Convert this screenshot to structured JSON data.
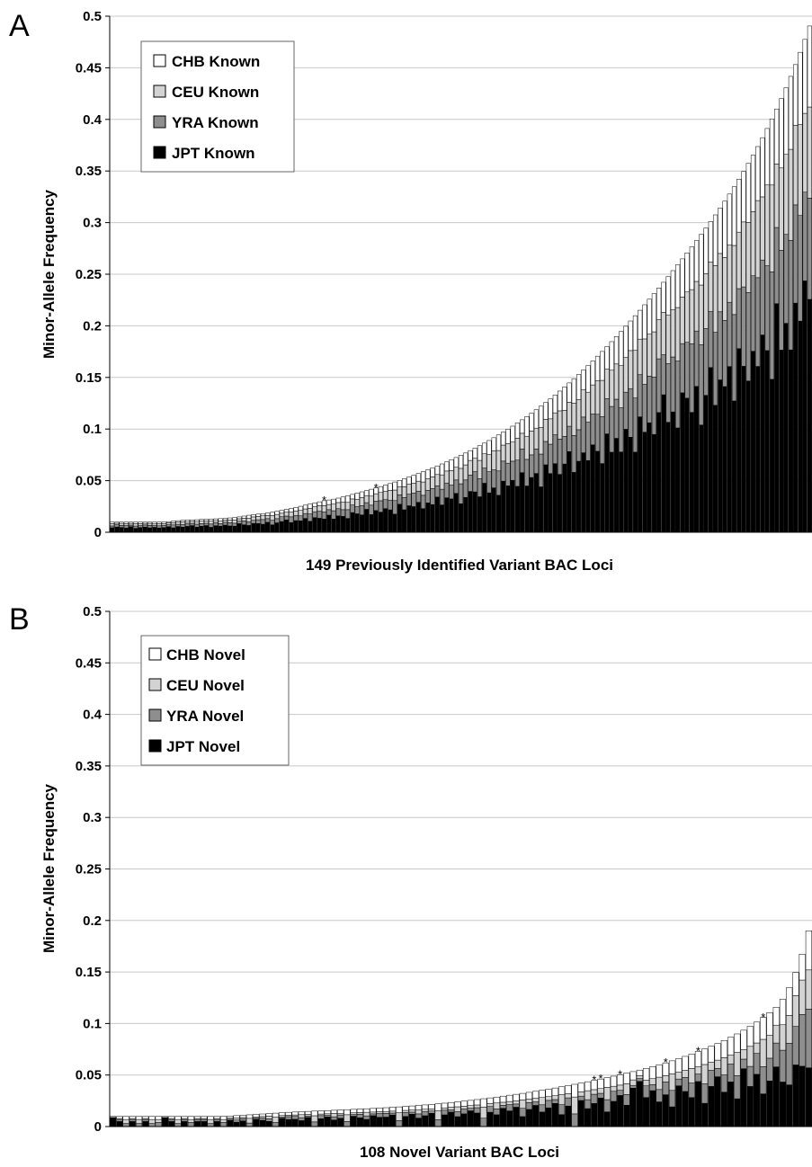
{
  "colors": {
    "CHB": "#ffffff",
    "CEU": "#d3d3d3",
    "YRA": "#8e8e8e",
    "JPT": "#000000",
    "gridline": "#c8c8c8",
    "axis": "#000000"
  },
  "chart_data": [
    {
      "panel": "A",
      "type": "bar",
      "stacked": true,
      "ylabel": "Minor-Allele Frequency",
      "xlabel": "149 Previously Identified Variant BAC Loci",
      "ylim": [
        0,
        0.5
      ],
      "yticks": [
        "0",
        "0.05",
        "0.1",
        "0.15",
        "0.2",
        "0.25",
        "0.3",
        "0.35",
        "0.4",
        "0.45",
        "0.5"
      ],
      "grid": true,
      "legend_position": "top-left",
      "legend": [
        "CHB Known",
        "CEU Known",
        "YRA Known",
        "JPT Known"
      ],
      "n_loci": 149,
      "totals": [
        0.0098,
        0.0098,
        0.0098,
        0.0098,
        0.0098,
        0.0098,
        0.0098,
        0.0098,
        0.0098,
        0.0098,
        0.0098,
        0.0099,
        0.0103,
        0.0108,
        0.0112,
        0.0116,
        0.0119,
        0.012,
        0.0121,
        0.0124,
        0.0125,
        0.0127,
        0.013,
        0.0132,
        0.0135,
        0.0139,
        0.0142,
        0.0149,
        0.0157,
        0.0165,
        0.0171,
        0.0176,
        0.0181,
        0.0186,
        0.0194,
        0.0203,
        0.0212,
        0.0221,
        0.023,
        0.024,
        0.0252,
        0.0263,
        0.0273,
        0.0284,
        0.0295,
        0.0306,
        0.0313,
        0.0321,
        0.0331,
        0.0342,
        0.0353,
        0.0367,
        0.0381,
        0.0392,
        0.0404,
        0.0417,
        0.0429,
        0.0443,
        0.0458,
        0.0472,
        0.0487,
        0.0503,
        0.0519,
        0.0535,
        0.0552,
        0.0569,
        0.0587,
        0.0605,
        0.0624,
        0.0643,
        0.0662,
        0.0682,
        0.0703,
        0.0724,
        0.0746,
        0.0768,
        0.0791,
        0.0815,
        0.0839,
        0.0864,
        0.0889,
        0.0916,
        0.0943,
        0.0971,
        0.0999,
        0.1028,
        0.1059,
        0.109,
        0.1121,
        0.1154,
        0.1187,
        0.1222,
        0.1257,
        0.1293,
        0.133,
        0.1368,
        0.1407,
        0.1447,
        0.1488,
        0.1529,
        0.1572,
        0.1616,
        0.166,
        0.1706,
        0.1752,
        0.1799,
        0.1847,
        0.1896,
        0.1945,
        0.1996,
        0.2047,
        0.2098,
        0.2151,
        0.2204,
        0.2258,
        0.2312,
        0.2367,
        0.2422,
        0.2478,
        0.2535,
        0.2592,
        0.2649,
        0.2707,
        0.2766,
        0.2826,
        0.2886,
        0.2948,
        0.3011,
        0.3075,
        0.3141,
        0.3208,
        0.3277,
        0.3348,
        0.3421,
        0.3496,
        0.3574,
        0.3654,
        0.3737,
        0.3823,
        0.3912,
        0.4005,
        0.4101,
        0.4202,
        0.4307,
        0.4417,
        0.4531,
        0.465,
        0.4775,
        0.4905
      ],
      "layer_fractions": {
        "JPT": [
          0.45,
          0.52,
          0.48,
          0.41,
          0.55,
          0.39,
          0.47,
          0.51,
          0.44,
          0.49,
          0.42,
          0.46,
          0.53,
          0.4,
          0.5,
          0.43,
          0.48,
          0.54,
          0.41,
          0.47,
          0.52,
          0.38,
          0.49,
          0.45,
          0.51,
          0.44,
          0.42,
          0.56,
          0.46,
          0.4,
          0.5,
          0.48,
          0.43,
          0.52,
          0.37,
          0.45,
          0.49,
          0.54,
          0.41,
          0.47,
          0.44,
          0.51,
          0.39,
          0.5,
          0.46,
          0.42,
          0.53,
          0.4,
          0.48,
          0.45,
          0.38,
          0.52,
          0.47,
          0.43,
          0.55,
          0.41,
          0.49,
          0.44,
          0.5,
          0.46,
          0.36,
          0.54,
          0.42,
          0.48,
          0.45,
          0.51,
          0.39,
          0.47,
          0.43,
          0.53,
          0.4,
          0.49,
          0.46,
          0.52,
          0.37,
          0.44,
          0.5,
          0.48,
          0.41,
          0.55,
          0.43,
          0.47,
          0.38,
          0.51,
          0.45,
          0.49,
          0.42,
          0.53,
          0.4,
          0.46,
          0.48,
          0.36,
          0.52,
          0.44,
          0.5,
          0.41,
          0.47,
          0.54,
          0.39,
          0.45,
          0.49,
          0.43,
          0.51,
          0.46,
          0.38,
          0.53,
          0.42,
          0.48,
          0.4,
          0.5,
          0.45,
          0.37,
          0.52,
          0.44,
          0.47,
          0.41,
          0.49,
          0.55,
          0.43,
          0.46,
          0.39,
          0.51,
          0.48,
          0.42,
          0.5,
          0.36,
          0.45,
          0.53,
          0.4,
          0.47,
          0.44,
          0.49,
          0.38,
          0.52,
          0.46,
          0.41,
          0.48,
          0.43,
          0.5,
          0.45,
          0.37,
          0.54,
          0.42,
          0.47,
          0.4,
          0.49,
          0.44,
          0.51,
          0.46
        ],
        "YRA": [
          0.18,
          0.22,
          0.2,
          0.25,
          0.16,
          0.23,
          0.19,
          0.21,
          0.24,
          0.17,
          0.22,
          0.2,
          0.18,
          0.26,
          0.19,
          0.23,
          0.21,
          0.17,
          0.24,
          0.2,
          0.18,
          0.25,
          0.22,
          0.19,
          0.21,
          0.23,
          0.2,
          0.16,
          0.24,
          0.22,
          0.18,
          0.21,
          0.25,
          0.19,
          0.23,
          0.2,
          0.22,
          0.17,
          0.24,
          0.21,
          0.19,
          0.18,
          0.26,
          0.2,
          0.23,
          0.22,
          0.17,
          0.25,
          0.21,
          0.19,
          0.24,
          0.2,
          0.18,
          0.23,
          0.16,
          0.22,
          0.21,
          0.25,
          0.19,
          0.2,
          0.27,
          0.18,
          0.23,
          0.21,
          0.24,
          0.19,
          0.22,
          0.2,
          0.25,
          0.17,
          0.23,
          0.21,
          0.19,
          0.18,
          0.26,
          0.22,
          0.2,
          0.24,
          0.21,
          0.17,
          0.23,
          0.19,
          0.25,
          0.2,
          0.22,
          0.18,
          0.24,
          0.21,
          0.23,
          0.19,
          0.2,
          0.26,
          0.18,
          0.22,
          0.21,
          0.25,
          0.19,
          0.17,
          0.24,
          0.2,
          0.22,
          0.23,
          0.18,
          0.21,
          0.26,
          0.19,
          0.24,
          0.2,
          0.22,
          0.18,
          0.23,
          0.25,
          0.19,
          0.21,
          0.2,
          0.24,
          0.22,
          0.16,
          0.23,
          0.21,
          0.25,
          0.18,
          0.2,
          0.24,
          0.19,
          0.27,
          0.22,
          0.18,
          0.23,
          0.21,
          0.2,
          0.19,
          0.25,
          0.17,
          0.22,
          0.24,
          0.2,
          0.23,
          0.19,
          0.21,
          0.26,
          0.18,
          0.23,
          0.2,
          0.24,
          0.21,
          0.22,
          0.18,
          0.2
        ],
        "CEU": [
          0.22,
          0.15,
          0.2,
          0.2,
          0.17,
          0.23,
          0.19,
          0.16,
          0.2,
          0.21,
          0.22,
          0.19,
          0.17,
          0.2,
          0.18,
          0.21,
          0.17,
          0.16,
          0.21,
          0.2,
          0.17,
          0.22,
          0.16,
          0.2,
          0.15,
          0.19,
          0.22,
          0.16,
          0.17,
          0.21,
          0.19,
          0.18,
          0.2,
          0.16,
          0.23,
          0.2,
          0.16,
          0.17,
          0.2,
          0.18,
          0.21,
          0.17,
          0.2,
          0.17,
          0.18,
          0.2,
          0.16,
          0.2,
          0.18,
          0.21,
          0.2,
          0.16,
          0.19,
          0.2,
          0.17,
          0.21,
          0.17,
          0.18,
          0.18,
          0.2,
          0.21,
          0.16,
          0.2,
          0.18,
          0.17,
          0.17,
          0.22,
          0.19,
          0.18,
          0.17,
          0.21,
          0.17,
          0.2,
          0.17,
          0.2,
          0.19,
          0.18,
          0.16,
          0.21,
          0.16,
          0.19,
          0.2,
          0.21,
          0.16,
          0.19,
          0.18,
          0.2,
          0.14,
          0.2,
          0.2,
          0.17,
          0.21,
          0.17,
          0.19,
          0.16,
          0.2,
          0.18,
          0.16,
          0.21,
          0.19,
          0.17,
          0.18,
          0.17,
          0.19,
          0.2,
          0.16,
          0.19,
          0.18,
          0.21,
          0.17,
          0.18,
          0.22,
          0.16,
          0.2,
          0.18,
          0.19,
          0.16,
          0.17,
          0.19,
          0.18,
          0.2,
          0.17,
          0.18,
          0.19,
          0.17,
          0.2,
          0.18,
          0.16,
          0.21,
          0.18,
          0.19,
          0.17,
          0.2,
          0.16,
          0.18,
          0.19,
          0.17,
          0.2,
          0.16,
          0.2,
          0.21,
          0.15,
          0.19,
          0.18,
          0.2,
          0.17,
          0.19,
          0.16,
          0.18
        ]
      },
      "stars_at": [
        45,
        56
      ],
      "stars": [
        "*",
        "*"
      ]
    },
    {
      "panel": "B",
      "type": "bar",
      "stacked": true,
      "ylabel": "Minor-Allele Frequency",
      "xlabel": "108 Novel Variant BAC Loci",
      "ylim": [
        0,
        0.5
      ],
      "yticks": [
        "0",
        "0.05",
        "0.1",
        "0.15",
        "0.2",
        "0.25",
        "0.3",
        "0.35",
        "0.4",
        "0.45",
        "0.5"
      ],
      "grid": true,
      "legend_position": "top-left",
      "legend": [
        "CHB Novel",
        "CEU Novel",
        "YRA Novel",
        "JPT Novel"
      ],
      "n_loci": 108,
      "totals": [
        0.0098,
        0.0098,
        0.0098,
        0.0098,
        0.0098,
        0.0098,
        0.0098,
        0.0098,
        0.0098,
        0.0098,
        0.0098,
        0.0098,
        0.0098,
        0.0098,
        0.0098,
        0.0098,
        0.0098,
        0.0098,
        0.0102,
        0.0106,
        0.011,
        0.0114,
        0.0118,
        0.0122,
        0.0126,
        0.013,
        0.0134,
        0.0138,
        0.0141,
        0.0144,
        0.0147,
        0.015,
        0.0152,
        0.0155,
        0.0158,
        0.0161,
        0.0164,
        0.0167,
        0.017,
        0.0173,
        0.0176,
        0.018,
        0.0183,
        0.0187,
        0.0191,
        0.0196,
        0.02,
        0.0205,
        0.021,
        0.0215,
        0.0221,
        0.0227,
        0.0234,
        0.024,
        0.0247,
        0.0254,
        0.0262,
        0.027,
        0.0278,
        0.0286,
        0.0295,
        0.0304,
        0.0313,
        0.0322,
        0.0332,
        0.0342,
        0.0352,
        0.0363,
        0.0374,
        0.0386,
        0.0398,
        0.041,
        0.0422,
        0.0435,
        0.0448,
        0.0461,
        0.0475,
        0.0489,
        0.0503,
        0.0518,
        0.0533,
        0.0548,
        0.0564,
        0.0581,
        0.0599,
        0.0618,
        0.0638,
        0.0659,
        0.0681,
        0.0704,
        0.0728,
        0.0753,
        0.0779,
        0.0806,
        0.0835,
        0.0866,
        0.0899,
        0.0935,
        0.0973,
        0.1014,
        0.1058,
        0.1106,
        0.1158,
        0.1235,
        0.1348,
        0.1495,
        0.1673,
        0.19
      ],
      "layer_fractions": {
        "JPT": [
          0.9,
          0.5,
          0.0,
          0.5,
          0.0,
          0.5,
          0.0,
          0.0,
          0.9,
          0.5,
          0.0,
          0.5,
          0.0,
          0.5,
          0.5,
          0.0,
          0.5,
          0.0,
          0.6,
          0.4,
          0.5,
          0.0,
          0.6,
          0.5,
          0.4,
          0.0,
          0.6,
          0.5,
          0.5,
          0.4,
          0.6,
          0.0,
          0.5,
          0.6,
          0.4,
          0.5,
          0.0,
          0.6,
          0.5,
          0.4,
          0.6,
          0.5,
          0.5,
          0.6,
          0.0,
          0.5,
          0.6,
          0.4,
          0.5,
          0.6,
          0.0,
          0.5,
          0.6,
          0.4,
          0.5,
          0.6,
          0.5,
          0.0,
          0.5,
          0.4,
          0.6,
          0.5,
          0.6,
          0.3,
          0.5,
          0.6,
          0.4,
          0.5,
          0.6,
          0.3,
          0.5,
          0.0,
          0.6,
          0.4,
          0.5,
          0.6,
          0.3,
          0.5,
          0.6,
          0.4,
          0.7,
          0.8,
          0.5,
          0.6,
          0.4,
          0.5,
          0.3,
          0.6,
          0.5,
          0.4,
          0.6,
          0.3,
          0.5,
          0.6,
          0.4,
          0.5,
          0.3,
          0.6,
          0.4,
          0.5,
          0.3,
          0.4,
          0.5,
          0.35,
          0.3,
          0.4,
          0.35,
          0.3
        ],
        "YRA": [
          0.0,
          0.2,
          0.3,
          0.2,
          0.3,
          0.2,
          0.3,
          0.4,
          0.0,
          0.2,
          0.3,
          0.2,
          0.4,
          0.2,
          0.2,
          0.3,
          0.2,
          0.4,
          0.1,
          0.2,
          0.2,
          0.3,
          0.1,
          0.2,
          0.2,
          0.3,
          0.1,
          0.2,
          0.2,
          0.2,
          0.1,
          0.3,
          0.2,
          0.1,
          0.2,
          0.2,
          0.3,
          0.1,
          0.2,
          0.2,
          0.1,
          0.2,
          0.2,
          0.1,
          0.3,
          0.2,
          0.1,
          0.2,
          0.2,
          0.1,
          0.3,
          0.2,
          0.1,
          0.2,
          0.2,
          0.1,
          0.2,
          0.3,
          0.2,
          0.2,
          0.1,
          0.2,
          0.1,
          0.25,
          0.2,
          0.1,
          0.2,
          0.2,
          0.1,
          0.25,
          0.2,
          0.3,
          0.1,
          0.2,
          0.2,
          0.1,
          0.25,
          0.2,
          0.1,
          0.2,
          0.05,
          0.05,
          0.2,
          0.1,
          0.2,
          0.2,
          0.25,
          0.1,
          0.2,
          0.2,
          0.1,
          0.25,
          0.2,
          0.1,
          0.2,
          0.2,
          0.25,
          0.1,
          0.2,
          0.2,
          0.25,
          0.2,
          0.2,
          0.25,
          0.3,
          0.25,
          0.3,
          0.3
        ],
        "CEU": [
          0.0,
          0.1,
          0.4,
          0.1,
          0.4,
          0.1,
          0.4,
          0.3,
          0.0,
          0.1,
          0.4,
          0.1,
          0.3,
          0.1,
          0.1,
          0.4,
          0.1,
          0.3,
          0.1,
          0.2,
          0.1,
          0.4,
          0.1,
          0.1,
          0.2,
          0.4,
          0.1,
          0.1,
          0.1,
          0.2,
          0.1,
          0.4,
          0.1,
          0.1,
          0.2,
          0.1,
          0.4,
          0.1,
          0.1,
          0.2,
          0.1,
          0.1,
          0.1,
          0.1,
          0.4,
          0.1,
          0.1,
          0.2,
          0.1,
          0.1,
          0.4,
          0.1,
          0.1,
          0.2,
          0.1,
          0.1,
          0.1,
          0.4,
          0.1,
          0.2,
          0.1,
          0.1,
          0.1,
          0.25,
          0.1,
          0.1,
          0.2,
          0.1,
          0.1,
          0.25,
          0.1,
          0.4,
          0.1,
          0.2,
          0.1,
          0.1,
          0.25,
          0.1,
          0.1,
          0.2,
          0.1,
          0.05,
          0.1,
          0.1,
          0.2,
          0.1,
          0.25,
          0.1,
          0.1,
          0.2,
          0.1,
          0.25,
          0.1,
          0.1,
          0.2,
          0.1,
          0.25,
          0.1,
          0.2,
          0.1,
          0.25,
          0.2,
          0.15,
          0.2,
          0.2,
          0.2,
          0.2,
          0.2
        ]
      },
      "stars_at": [
        74,
        75,
        78,
        85,
        90,
        100
      ],
      "stars": [
        "*",
        "*",
        "*",
        "*",
        "*",
        "*"
      ]
    }
  ]
}
